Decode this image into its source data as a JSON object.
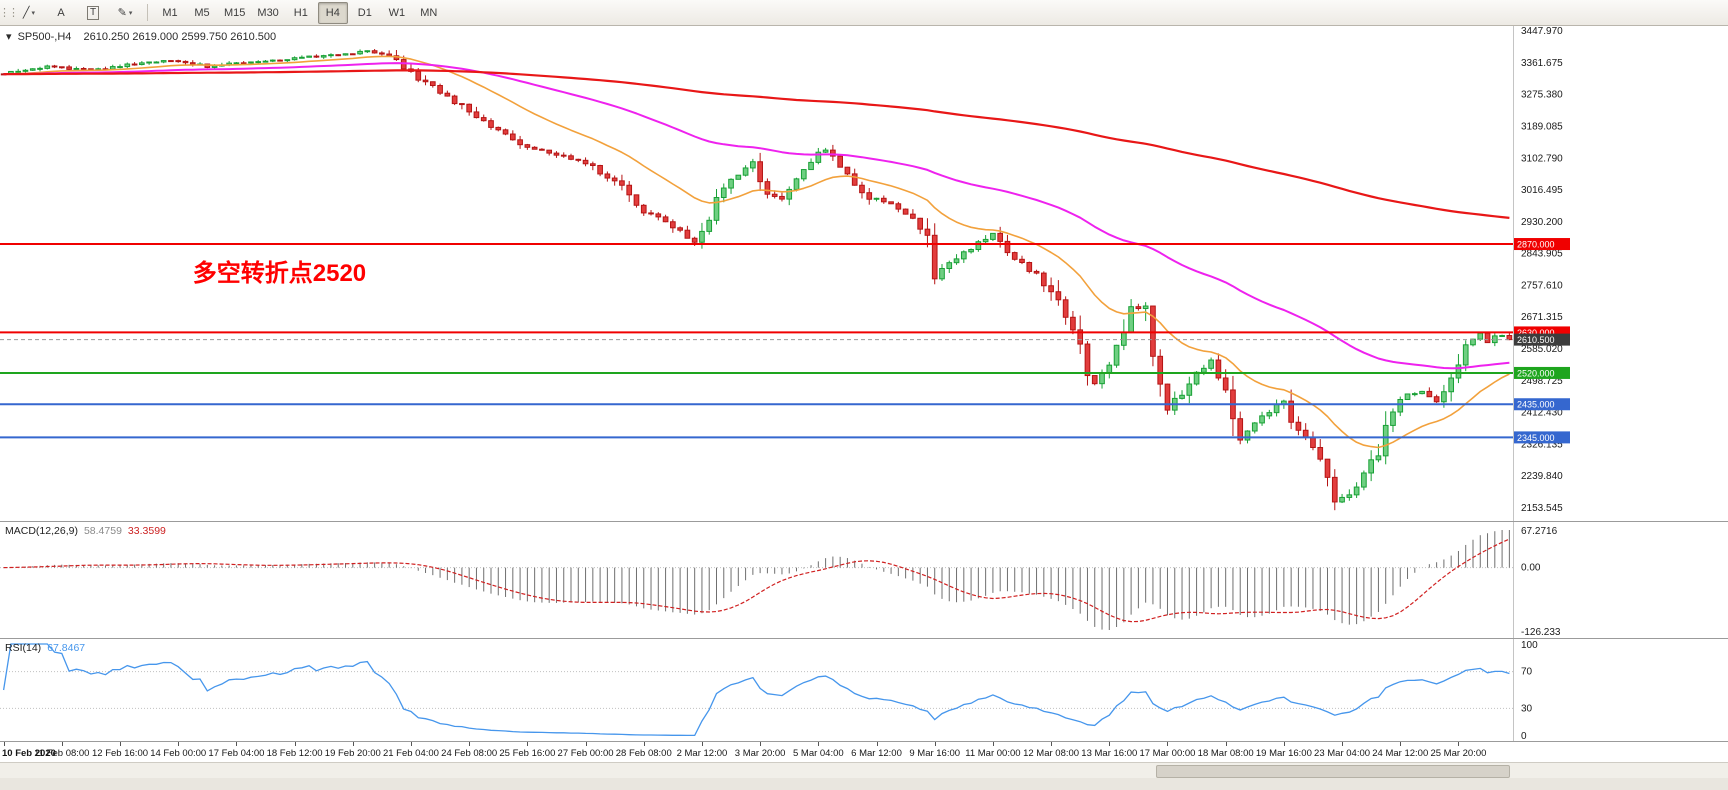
{
  "icons": {
    "expand_arrow": "▾",
    "grip": "⋮⋮"
  },
  "toolbar": {
    "tools": [
      {
        "id": "line-studies-tool",
        "glyph": "╱",
        "dropdown": true,
        "boxed": false
      },
      {
        "id": "arrow-text-tool",
        "glyph": "A",
        "dropdown": false,
        "boxed": false
      },
      {
        "id": "text-label-tool",
        "glyph": "T",
        "dropdown": false,
        "boxed": true
      },
      {
        "id": "drawing-tool",
        "glyph": "✎",
        "dropdown": true,
        "boxed": false
      }
    ],
    "timeframes": [
      {
        "label": "M1",
        "active": false
      },
      {
        "label": "M5",
        "active": false
      },
      {
        "label": "M15",
        "active": false
      },
      {
        "label": "M30",
        "active": false
      },
      {
        "label": "H1",
        "active": false
      },
      {
        "label": "H4",
        "active": true
      },
      {
        "label": "D1",
        "active": false
      },
      {
        "label": "W1",
        "active": false
      },
      {
        "label": "MN",
        "active": false
      }
    ]
  },
  "chart": {
    "symbol_period": "SP500-,H4",
    "ohlc": "2610.250 2619.000 2599.750 2610.500",
    "annotation": {
      "text": "多空转折点2520",
      "color": "#ff0000",
      "bar": 26,
      "price": 2770,
      "font_size": 24
    },
    "levels": [
      {
        "price": 2870.0,
        "label": "2870.000",
        "color": "#f00000"
      },
      {
        "price": 2630.0,
        "label": "2630.000",
        "color": "#f00000"
      },
      {
        "price": 2520.0,
        "label": "2520.000",
        "color": "#1ea51e"
      },
      {
        "price": 2435.0,
        "label": "2435.000",
        "color": "#3567cf"
      },
      {
        "price": 2345.0,
        "label": "2345.000",
        "color": "#3567cf"
      }
    ],
    "current_price": {
      "value": 2610.5,
      "label": "2610.500",
      "badge_color": "#3c3c3c"
    },
    "y_ticks": [
      "3447.970",
      "3361.675",
      "3275.380",
      "3189.085",
      "3102.790",
      "3016.495",
      "2930.200",
      "2843.905",
      "2757.610",
      "2671.315",
      "2585.020",
      "2498.725",
      "2412.430",
      "2326.135",
      "2239.840",
      "2153.545"
    ],
    "x_labels": [
      "10 Feb 2020",
      "11 Feb 08:00",
      "12 Feb 16:00",
      "14 Feb 00:00",
      "17 Feb 04:00",
      "18 Feb 12:00",
      "19 Feb 20:00",
      "21 Feb 04:00",
      "24 Feb 08:00",
      "25 Feb 16:00",
      "27 Feb 00:00",
      "28 Feb 08:00",
      "2 Mar 12:00",
      "3 Mar 20:00",
      "5 Mar 04:00",
      "6 Mar 12:00",
      "9 Mar 16:00",
      "11 Mar 00:00",
      "12 Mar 08:00",
      "13 Mar 16:00",
      "17 Mar 00:00",
      "18 Mar 08:00",
      "19 Mar 16:00",
      "23 Mar 04:00",
      "24 Mar 12:00",
      "25 Mar 20:00"
    ]
  },
  "chart_data": {
    "type": "candlestick",
    "title": "SP500- H4 candlestick chart, Feb 10 2020 - Mar 25 2020",
    "bars": 208,
    "ylim": [
      2118,
      3462
    ],
    "last_close": 2610.5,
    "close_anchors": [
      [
        0,
        3332
      ],
      [
        6,
        3352
      ],
      [
        12,
        3342
      ],
      [
        18,
        3360
      ],
      [
        24,
        3368
      ],
      [
        28,
        3352
      ],
      [
        34,
        3365
      ],
      [
        40,
        3374
      ],
      [
        46,
        3386
      ],
      [
        50,
        3393
      ],
      [
        53,
        3385
      ],
      [
        56,
        3338
      ],
      [
        58,
        3308
      ],
      [
        62,
        3258
      ],
      [
        64,
        3226
      ],
      [
        66,
        3198
      ],
      [
        70,
        3152
      ],
      [
        72,
        3128
      ],
      [
        76,
        3115
      ],
      [
        80,
        3092
      ],
      [
        84,
        3040
      ],
      [
        88,
        2958
      ],
      [
        92,
        2916
      ],
      [
        95,
        2868
      ],
      [
        97,
        2948
      ],
      [
        100,
        3048
      ],
      [
        103,
        3088
      ],
      [
        105,
        3006
      ],
      [
        107,
        2988
      ],
      [
        110,
        3082
      ],
      [
        113,
        3128
      ],
      [
        116,
        3062
      ],
      [
        119,
        2996
      ],
      [
        122,
        2976
      ],
      [
        125,
        2948
      ],
      [
        127,
        2890
      ],
      [
        128,
        2792
      ],
      [
        130,
        2822
      ],
      [
        133,
        2862
      ],
      [
        136,
        2896
      ],
      [
        138,
        2856
      ],
      [
        141,
        2802
      ],
      [
        144,
        2748
      ],
      [
        147,
        2632
      ],
      [
        150,
        2486
      ],
      [
        152,
        2556
      ],
      [
        155,
        2692
      ],
      [
        157,
        2706
      ],
      [
        158,
        2562
      ],
      [
        160,
        2422
      ],
      [
        162,
        2466
      ],
      [
        164,
        2526
      ],
      [
        166,
        2552
      ],
      [
        168,
        2472
      ],
      [
        170,
        2332
      ],
      [
        172,
        2382
      ],
      [
        174,
        2416
      ],
      [
        176,
        2446
      ],
      [
        178,
        2362
      ],
      [
        180,
        2312
      ],
      [
        182,
        2232
      ],
      [
        183,
        2172
      ],
      [
        185,
        2186
      ],
      [
        187,
        2246
      ],
      [
        189,
        2312
      ],
      [
        191,
        2422
      ],
      [
        193,
        2458
      ],
      [
        195,
        2472
      ],
      [
        197,
        2446
      ],
      [
        199,
        2502
      ],
      [
        201,
        2582
      ],
      [
        203,
        2628
      ],
      [
        204,
        2602
      ],
      [
        205,
        2618
      ],
      [
        206,
        2624
      ],
      [
        207,
        2610.5
      ]
    ],
    "ma_series": [
      {
        "name": "ma-fast",
        "period": 20,
        "color": "#f2a13c",
        "width": 1.6
      },
      {
        "name": "ma-mid",
        "period": 70,
        "color": "#ee22ee",
        "width": 2
      },
      {
        "name": "ma-slow",
        "period": 300,
        "color": "#e81717",
        "width": 2.2
      }
    ]
  },
  "macd": {
    "label": "MACD(12,26,9)",
    "fast": 12,
    "slow": 26,
    "signal": 9,
    "value_main": "58.4759",
    "value_signal": "33.3599",
    "axis_top": "67.2716",
    "axis_zero": "0.00",
    "axis_bottom": "-126.233"
  },
  "rsi": {
    "label": "RSI(14)",
    "period": 14,
    "value": "67.8467",
    "axis": [
      "100",
      "70",
      "30",
      "0"
    ],
    "levels": [
      70,
      30
    ]
  },
  "colors": {
    "up_fill": "#6fcf82",
    "up_stroke": "#18a035",
    "down_fill": "#e23d3d",
    "down_stroke": "#b51414",
    "macd_hist": "#6f6f6f",
    "macd_signal": "#d02020",
    "rsi_line": "#4696ec",
    "axis_text": "#1a1a1a"
  }
}
